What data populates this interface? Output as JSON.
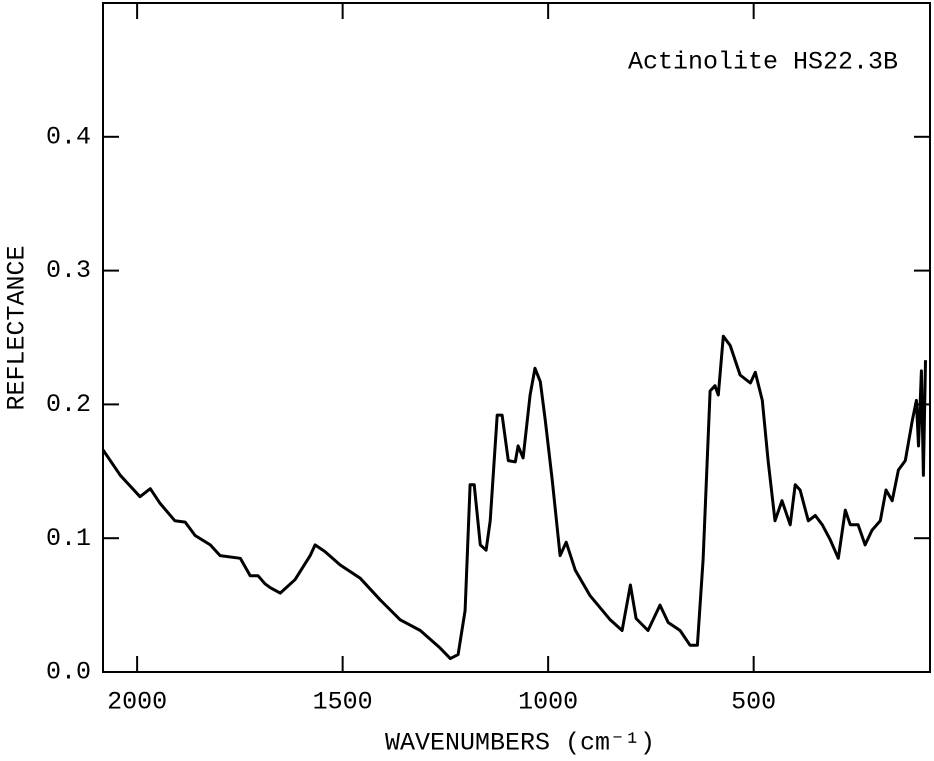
{
  "chart_data": {
    "type": "line",
    "annotation": "Actinolite HS22.3B",
    "xlabel": "WAVENUMBERS (cm⁻¹)",
    "ylabel": "REFLECTANCE",
    "xlim": [
      2083,
      71
    ],
    "ylim": [
      0,
      0.5
    ],
    "xticks": [
      2000,
      1500,
      1000,
      500
    ],
    "yticks": [
      {
        "value": 0,
        "label": "0.0"
      },
      0.1,
      0.2,
      0.3,
      0.4
    ],
    "color": "#000000",
    "x": [
      2083,
      2041,
      1993,
      1968,
      1944,
      1908,
      1883,
      1859,
      1822,
      1798,
      1749,
      1725,
      1706,
      1689,
      1676,
      1652,
      1616,
      1579,
      1567,
      1543,
      1506,
      1457,
      1409,
      1360,
      1311,
      1263,
      1238,
      1219,
      1202,
      1190,
      1180,
      1165,
      1151,
      1141,
      1124,
      1112,
      1097,
      1080,
      1073,
      1061,
      1044,
      1032,
      1019,
      1007,
      990,
      971,
      956,
      934,
      898,
      849,
      820,
      800,
      786,
      757,
      728,
      708,
      679,
      655,
      637,
      623,
      606,
      594,
      586,
      574,
      557,
      533,
      508,
      496,
      479,
      465,
      448,
      431,
      411,
      399,
      387,
      367,
      350,
      333,
      314,
      294,
      277,
      265,
      246,
      229,
      212,
      192,
      178,
      163,
      148,
      131,
      114,
      104,
      99,
      92,
      87,
      82
    ],
    "values": [
      0.166,
      0.147,
      0.131,
      0.137,
      0.126,
      0.113,
      0.112,
      0.102,
      0.095,
      0.087,
      0.085,
      0.072,
      0.072,
      0.066,
      0.063,
      0.059,
      0.069,
      0.087,
      0.095,
      0.09,
      0.08,
      0.07,
      0.054,
      0.039,
      0.031,
      0.018,
      0.01,
      0.013,
      0.046,
      0.14,
      0.14,
      0.095,
      0.091,
      0.113,
      0.192,
      0.192,
      0.158,
      0.157,
      0.169,
      0.16,
      0.207,
      0.227,
      0.217,
      0.188,
      0.143,
      0.087,
      0.097,
      0.076,
      0.057,
      0.039,
      0.031,
      0.065,
      0.04,
      0.031,
      0.05,
      0.037,
      0.031,
      0.02,
      0.02,
      0.084,
      0.21,
      0.214,
      0.207,
      0.251,
      0.244,
      0.222,
      0.216,
      0.224,
      0.203,
      0.158,
      0.113,
      0.128,
      0.11,
      0.14,
      0.136,
      0.113,
      0.117,
      0.11,
      0.099,
      0.085,
      0.121,
      0.11,
      0.11,
      0.095,
      0.106,
      0.113,
      0.136,
      0.128,
      0.151,
      0.158,
      0.188,
      0.203,
      0.169,
      0.225,
      0.147,
      0.233
    ]
  }
}
